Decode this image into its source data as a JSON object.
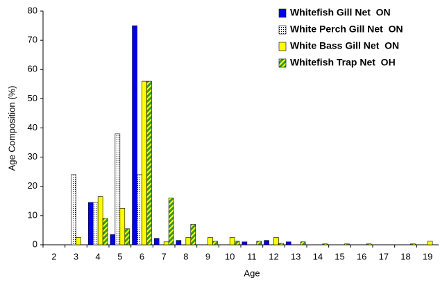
{
  "chart_data": {
    "type": "bar",
    "x_label": "Age",
    "y_label": "Age Composition (%)",
    "categories": [
      "2",
      "3",
      "4",
      "5",
      "6",
      "7",
      "8",
      "9",
      "10",
      "11",
      "12",
      "13",
      "14",
      "15",
      "16",
      "17",
      "18",
      "19"
    ],
    "series": [
      {
        "name": "Whitefish Gill Net  ON",
        "color": "#0000ee",
        "values": [
          0,
          0,
          14.5,
          3.5,
          75,
          2.2,
          1.5,
          0,
          0,
          1,
          1.5,
          1,
          0,
          0,
          0,
          0,
          0,
          0
        ]
      },
      {
        "name": "White Perch Gill Net  ON",
        "color": "#ffffff",
        "values": [
          0,
          24,
          14.5,
          38,
          24,
          0,
          0,
          0,
          0,
          0,
          0,
          0,
          0,
          0,
          0,
          0,
          0,
          0
        ]
      },
      {
        "name": "White Bass Gill Net  ON",
        "color": "#ffff00",
        "values": [
          0,
          2.5,
          16.5,
          12.5,
          56,
          1,
          2.5,
          2.5,
          2.5,
          0,
          2.5,
          0,
          0,
          0,
          0,
          0,
          0,
          1.2
        ]
      },
      {
        "name": "Whitefish Trap Net  OH",
        "color": "#339933",
        "values": [
          0,
          0,
          9,
          5.5,
          56,
          16,
          7,
          1.2,
          1.2,
          1.2,
          0.5,
          1,
          0.3,
          0.3,
          0.3,
          0,
          0.3,
          0
        ]
      }
    ],
    "ylim": [
      0,
      80
    ],
    "yticks": [
      0,
      10,
      20,
      30,
      40,
      50,
      60,
      70,
      80
    ],
    "grid": false,
    "legend": "top-right"
  }
}
